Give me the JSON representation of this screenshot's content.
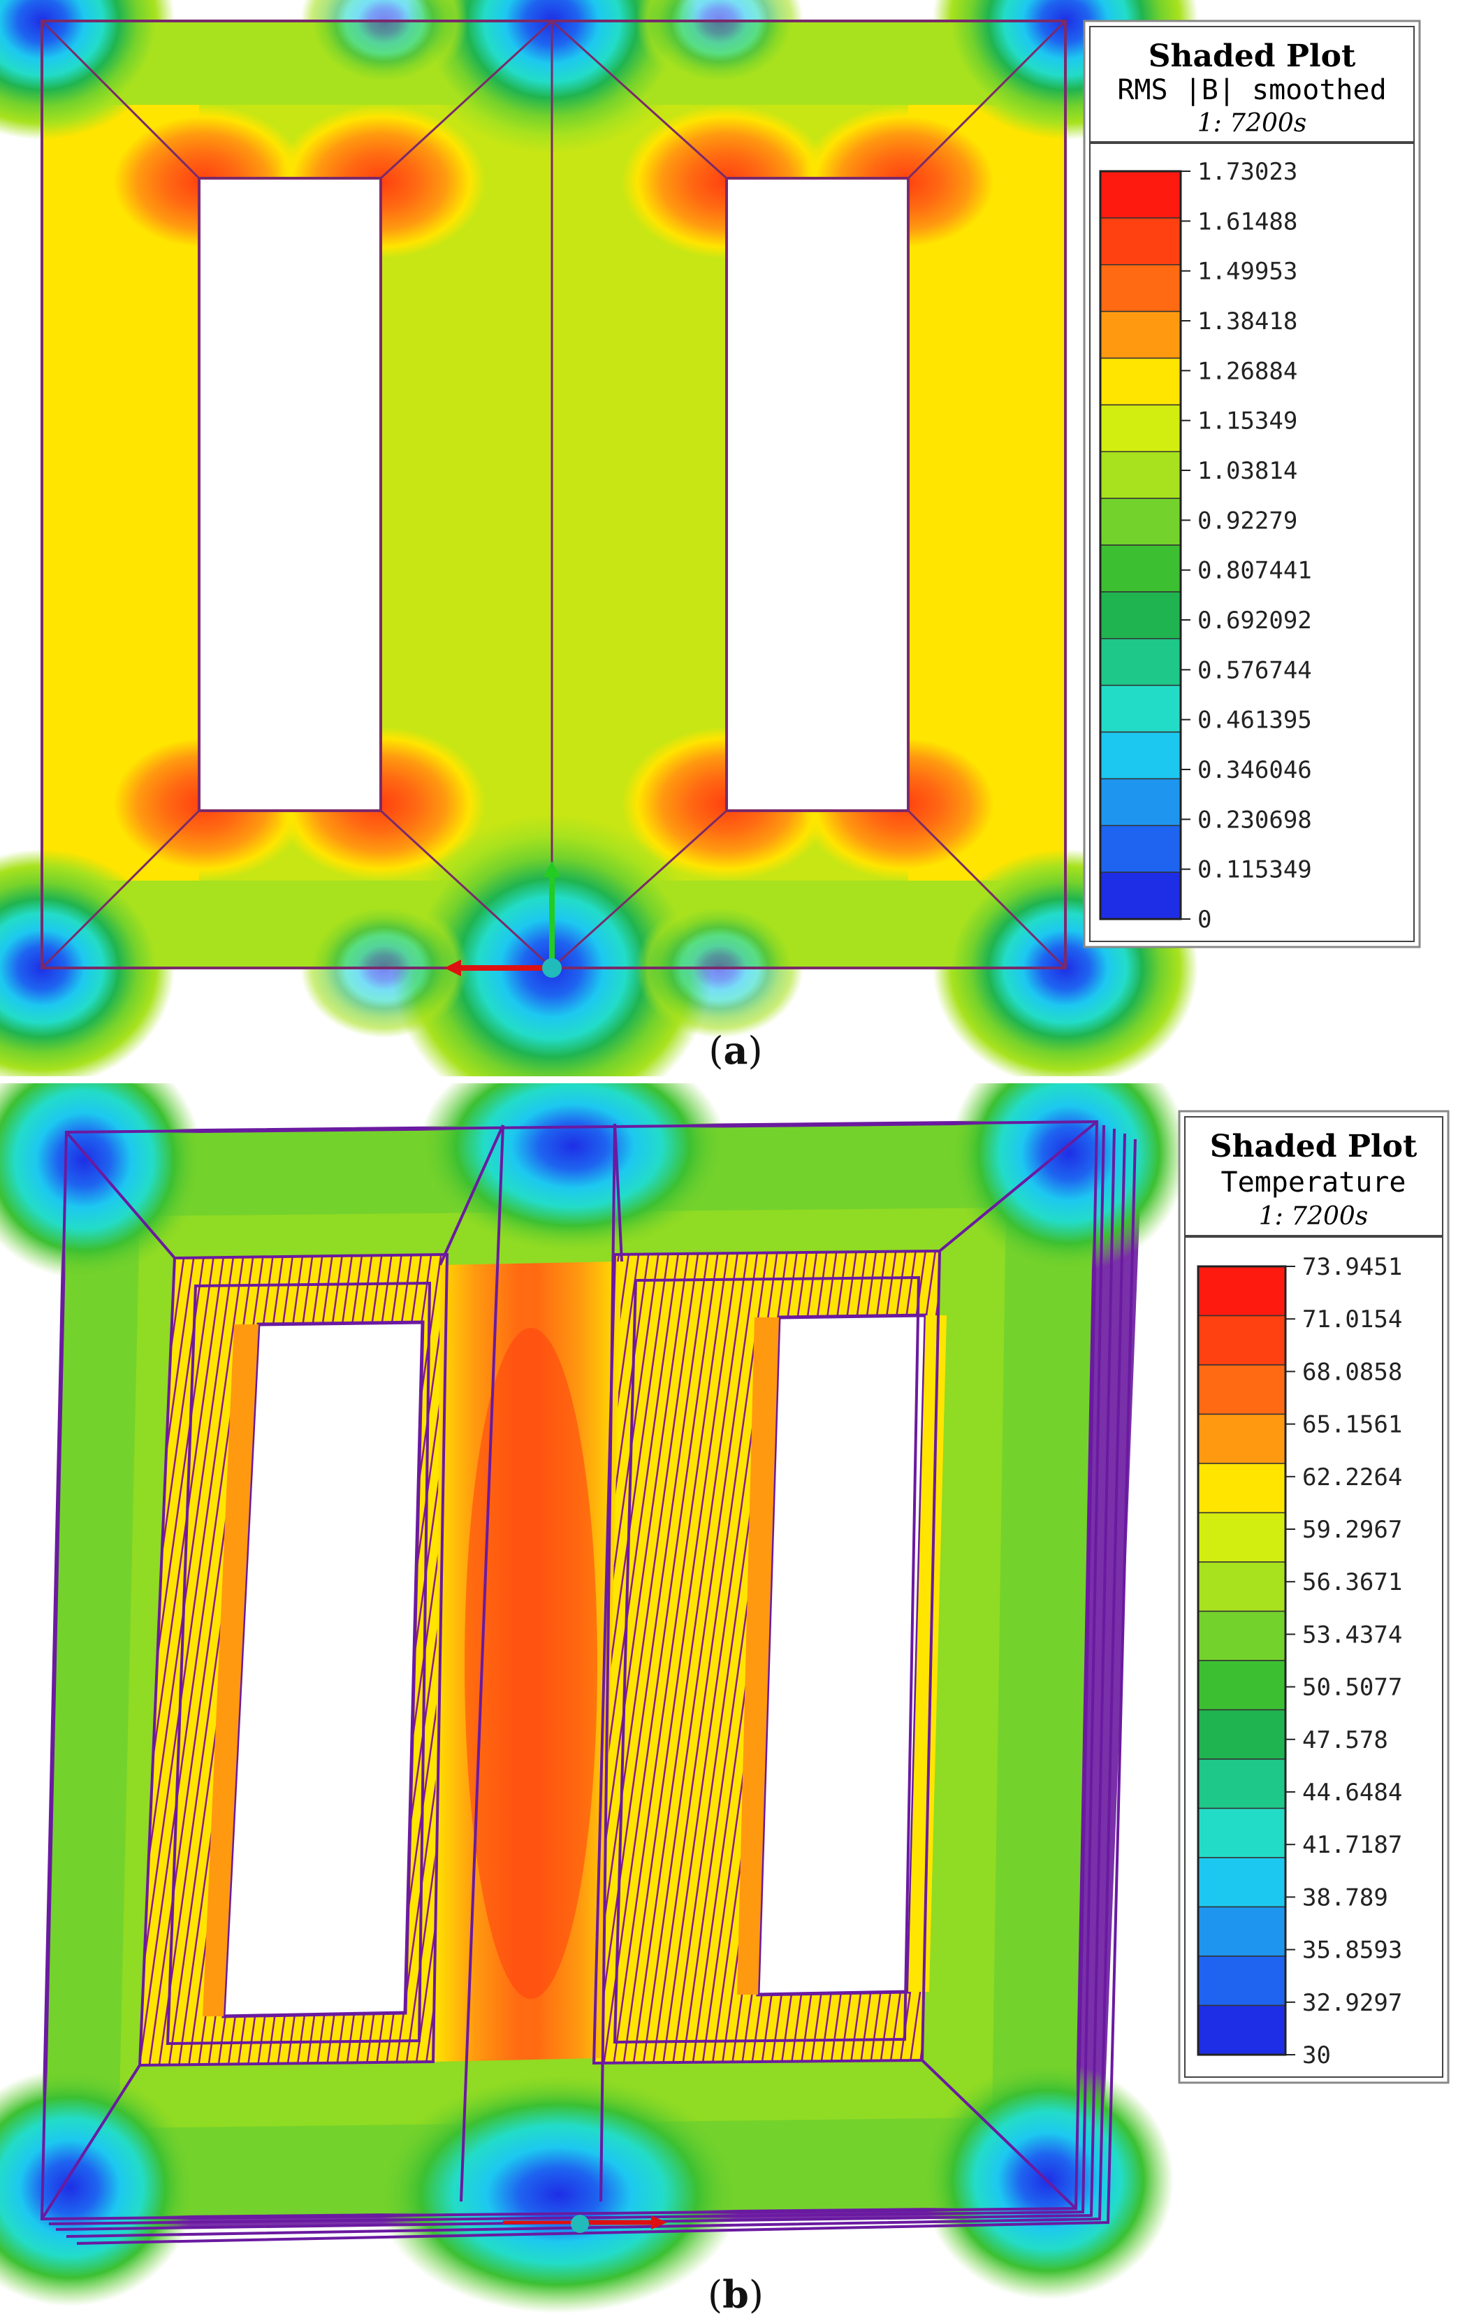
{
  "panels": {
    "a": {
      "caption": "(a)",
      "caption_letter": "a",
      "legend": {
        "title": "Shaded Plot",
        "subtitle": "RMS |B| smoothed",
        "time": "1: 7200s",
        "ticks": [
          "1.73023",
          "1.61488",
          "1.49953",
          "1.38418",
          "1.26884",
          "1.15349",
          "1.03814",
          "0.92279",
          "0.807441",
          "0.692092",
          "0.576744",
          "0.461395",
          "0.346046",
          "0.230698",
          "0.115349",
          "0"
        ]
      }
    },
    "b": {
      "caption": "(b)",
      "caption_letter": "b",
      "legend": {
        "title": "Shaded Plot",
        "subtitle": "Temperature",
        "time": "1: 7200s",
        "ticks": [
          "73.9451",
          "71.0154",
          "68.0858",
          "65.1561",
          "62.2264",
          "59.2967",
          "56.3671",
          "53.4374",
          "50.5077",
          "47.578",
          "44.6484",
          "41.7187",
          "38.789",
          "35.8593",
          "32.9297",
          "30"
        ]
      }
    }
  },
  "colorbar_colors": [
    "#ff1a10",
    "#ff4010",
    "#ff6a12",
    "#ff9a10",
    "#ffe500",
    "#d2ee10",
    "#a8e21e",
    "#74d22c",
    "#3cc032",
    "#20b450",
    "#1ec889",
    "#23dcc8",
    "#1dc8f0",
    "#1e96f0",
    "#1e64f0",
    "#1e2ee6"
  ],
  "field_colors": {
    "low": "#1e3ce8",
    "mid_low": "#2ed2f0",
    "mid": "#64c83c",
    "mid_high": "#c8e614",
    "high": "#ffe600",
    "peak": "#ff7814"
  }
}
